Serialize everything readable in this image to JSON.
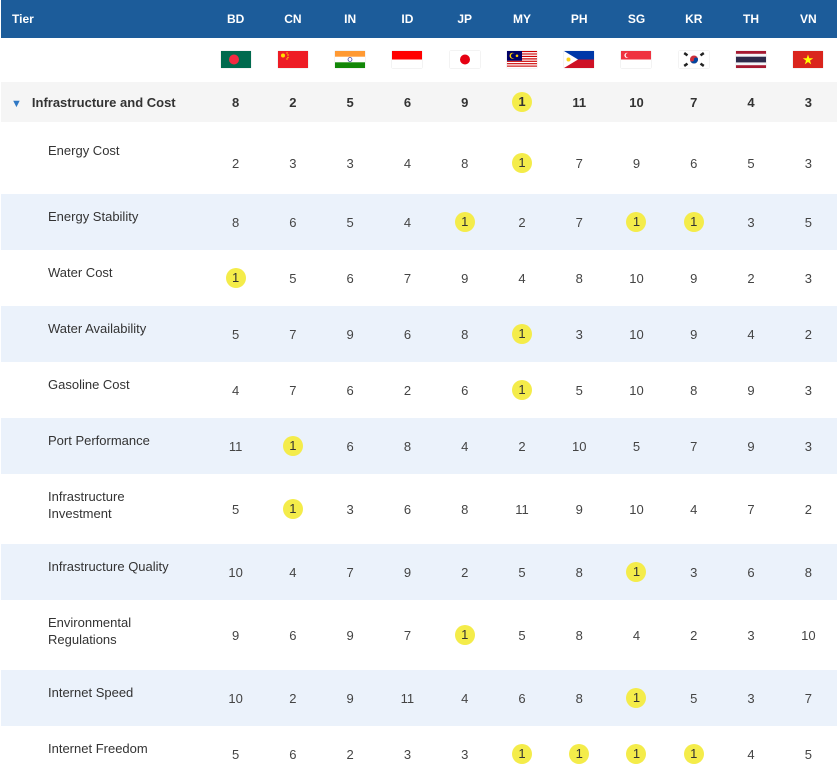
{
  "header": {
    "tier_label": "Tier",
    "countries": [
      "BD",
      "CN",
      "IN",
      "ID",
      "JP",
      "MY",
      "PH",
      "SG",
      "KR",
      "TH",
      "VN"
    ]
  },
  "flags": [
    "bangladesh-flag",
    "china-flag",
    "india-flag",
    "indonesia-flag",
    "japan-flag",
    "malaysia-flag",
    "philippines-flag",
    "singapore-flag",
    "south-korea-flag",
    "thailand-flag",
    "vietnam-flag"
  ],
  "category": {
    "label": "Infrastructure and Cost",
    "icon": "triangle-down-icon",
    "values": [
      "8",
      "2",
      "5",
      "6",
      "9",
      "1",
      "11",
      "10",
      "7",
      "4",
      "3"
    ]
  },
  "rows": [
    {
      "label": "Energy Cost",
      "values": [
        "2",
        "3",
        "3",
        "4",
        "8",
        "1",
        "7",
        "9",
        "6",
        "5",
        "3"
      ]
    },
    {
      "label": "Energy Stability",
      "values": [
        "8",
        "6",
        "5",
        "4",
        "1",
        "2",
        "7",
        "1",
        "1",
        "3",
        "5"
      ]
    },
    {
      "label": "Water Cost",
      "values": [
        "1",
        "5",
        "6",
        "7",
        "9",
        "4",
        "8",
        "10",
        "9",
        "2",
        "3"
      ]
    },
    {
      "label": "Water Availability",
      "values": [
        "5",
        "7",
        "9",
        "6",
        "8",
        "1",
        "3",
        "10",
        "9",
        "4",
        "2"
      ]
    },
    {
      "label": "Gasoline Cost",
      "values": [
        "4",
        "7",
        "6",
        "2",
        "6",
        "1",
        "5",
        "10",
        "8",
        "9",
        "3"
      ]
    },
    {
      "label": "Port Performance",
      "values": [
        "11",
        "1",
        "6",
        "8",
        "4",
        "2",
        "10",
        "5",
        "7",
        "9",
        "3"
      ]
    },
    {
      "label": "Infrastructure Investment",
      "values": [
        "5",
        "1",
        "3",
        "6",
        "8",
        "11",
        "9",
        "10",
        "4",
        "7",
        "2"
      ]
    },
    {
      "label": "Infrastructure Quality",
      "values": [
        "10",
        "4",
        "7",
        "9",
        "2",
        "5",
        "8",
        "1",
        "3",
        "6",
        "8"
      ]
    },
    {
      "label": "Environmental Regulations",
      "values": [
        "9",
        "6",
        "9",
        "7",
        "1",
        "5",
        "8",
        "4",
        "2",
        "3",
        "10"
      ]
    },
    {
      "label": "Internet Speed",
      "values": [
        "10",
        "2",
        "9",
        "11",
        "4",
        "6",
        "8",
        "1",
        "5",
        "3",
        "7"
      ]
    },
    {
      "label": "Internet Freedom",
      "values": [
        "5",
        "6",
        "2",
        "3",
        "3",
        "1",
        "1",
        "1",
        "1",
        "4",
        "5"
      ]
    }
  ],
  "colors": {
    "header_bg": "#1c5c9a",
    "top_rank_highlight": "#f4ec4a",
    "alt_row": "#ebf2fb"
  }
}
